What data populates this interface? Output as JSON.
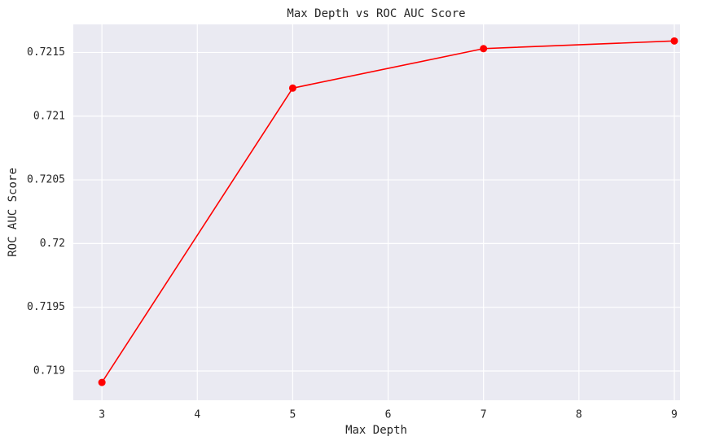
{
  "chart_data": {
    "type": "line",
    "title": "Max Depth vs ROC AUC Score",
    "x_label": "Max Depth",
    "y_label": "ROC AUC Score",
    "x": [
      3,
      5,
      7,
      9
    ],
    "series": [
      {
        "name": "ROC AUC",
        "color": "#ff0000",
        "values": [
          0.71891,
          0.72122,
          0.72153,
          0.72159
        ]
      }
    ],
    "xlim": [
      2.7,
      9.06
    ],
    "xticks": [
      3,
      4,
      5,
      6,
      7,
      8,
      9
    ],
    "ylim": [
      0.71877,
      0.72172
    ],
    "yticks": [
      0.719,
      0.7195,
      0.72,
      0.7205,
      0.721,
      0.7215
    ],
    "grid": true,
    "background": "#eaeaf2"
  }
}
